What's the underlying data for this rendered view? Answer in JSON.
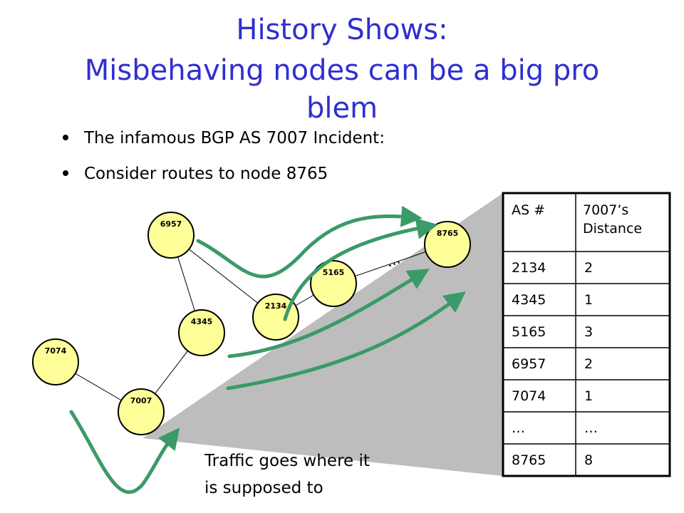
{
  "header": {
    "title_lines": [
      "History Shows:",
      "Misbehaving nodes can be a big pro",
      "blem"
    ]
  },
  "bullets": [
    "The infamous BGP AS 7007 Incident:",
    "Consider routes to node 8765"
  ],
  "nodes": [
    {
      "label": "6957"
    },
    {
      "label": "8765"
    },
    {
      "label": "5165"
    },
    {
      "label": "2134"
    },
    {
      "label": "4345"
    },
    {
      "label": "7074"
    },
    {
      "label": "7007"
    }
  ],
  "ellipsis": "...",
  "table": {
    "header": [
      "AS #",
      "7007’s Distance"
    ],
    "rows": [
      [
        "2134",
        "2"
      ],
      [
        "4345",
        "1"
      ],
      [
        "5165",
        "3"
      ],
      [
        "6957",
        "2"
      ],
      [
        "7074",
        "1"
      ],
      [
        "…",
        "…"
      ],
      [
        "8765",
        "8"
      ]
    ]
  },
  "caption_lines": [
    "Traffic goes where it",
    "is supposed to"
  ]
}
